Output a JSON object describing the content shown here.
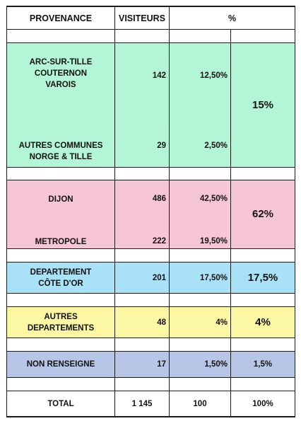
{
  "headers": {
    "provenance": "PROVENANCE",
    "visiteurs": "VISITEURS",
    "percent": "%"
  },
  "colors": {
    "green": "#b3f5d7",
    "pink": "#f7c6d6",
    "blue": "#a9e1f7",
    "yellow": "#fbf7a3",
    "slate": "#b7c6e6",
    "border": "#1a1a1a"
  },
  "groups": {
    "communes": {
      "label_1": "ARC-SUR-TILLE\nCOUTERNON\nVAROIS",
      "visiteurs_1": "142",
      "pct_1": "12,50%",
      "label_2": "AUTRES COMMUNES\nNORGE & TILLE",
      "visiteurs_2": "29",
      "pct_2": "2,50%",
      "total_pct": "15%"
    },
    "dijon": {
      "label_1": "DIJON",
      "visiteurs_1": "486",
      "pct_1": "42,50%",
      "label_2": "METROPOLE",
      "visiteurs_2": "222",
      "pct_2": "19,50%",
      "total_pct": "62%"
    },
    "departement": {
      "label": "DEPARTEMENT\nCÔTE D'OR",
      "visiteurs": "201",
      "pct": "17,50%",
      "total_pct": "17,5%"
    },
    "autres_departements": {
      "label": "AUTRES\nDEPARTEMENTS",
      "visiteurs": "48",
      "pct": "4%",
      "total_pct": "4%"
    },
    "non_renseigne": {
      "label": "NON RENSEIGNE",
      "visiteurs": "17",
      "pct": "1,50%",
      "total_pct": "1,5%"
    }
  },
  "total": {
    "label": "TOTAL",
    "visiteurs": "1 145",
    "pct": "100",
    "total_pct": "100%"
  }
}
